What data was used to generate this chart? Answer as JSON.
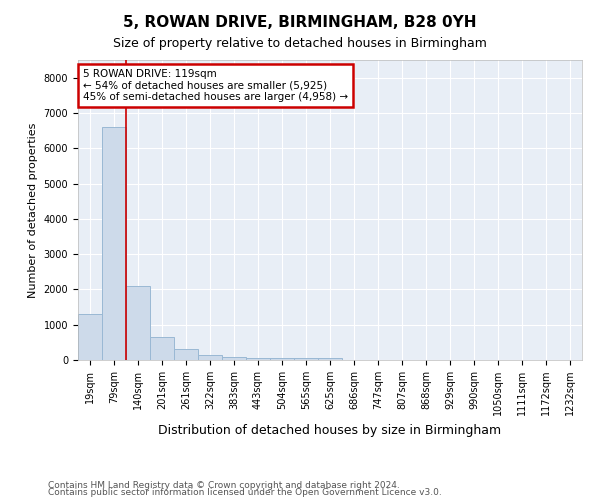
{
  "title": "5, ROWAN DRIVE, BIRMINGHAM, B28 0YH",
  "subtitle": "Size of property relative to detached houses in Birmingham",
  "xlabel": "Distribution of detached houses by size in Birmingham",
  "ylabel": "Number of detached properties",
  "footnote1": "Contains HM Land Registry data © Crown copyright and database right 2024.",
  "footnote2": "Contains public sector information licensed under the Open Government Licence v3.0.",
  "bar_labels": [
    "19sqm",
    "79sqm",
    "140sqm",
    "201sqm",
    "261sqm",
    "322sqm",
    "383sqm",
    "443sqm",
    "504sqm",
    "565sqm",
    "625sqm",
    "686sqm",
    "747sqm",
    "807sqm",
    "868sqm",
    "929sqm",
    "990sqm",
    "1050sqm",
    "1111sqm",
    "1172sqm",
    "1232sqm"
  ],
  "bar_values": [
    1300,
    6600,
    2100,
    650,
    300,
    130,
    80,
    50,
    50,
    50,
    50,
    0,
    0,
    0,
    0,
    0,
    0,
    0,
    0,
    0,
    0
  ],
  "bar_color": "#cddaea",
  "bar_edge_color": "#9ab8d4",
  "vline_x_index": 2,
  "annotation_title": "5 ROWAN DRIVE: 119sqm",
  "annotation_line1": "← 54% of detached houses are smaller (5,925)",
  "annotation_line2": "45% of semi-detached houses are larger (4,958) →",
  "annotation_box_color": "#ffffff",
  "annotation_box_edge": "#cc0000",
  "vline_color": "#cc0000",
  "ylim": [
    0,
    8500
  ],
  "yticks": [
    0,
    1000,
    2000,
    3000,
    4000,
    5000,
    6000,
    7000,
    8000
  ],
  "background_color": "#ffffff",
  "plot_bg_color": "#e8eef6",
  "grid_color": "#ffffff",
  "title_fontsize": 11,
  "subtitle_fontsize": 9,
  "ylabel_fontsize": 8,
  "xlabel_fontsize": 9,
  "tick_fontsize": 7,
  "footnote_fontsize": 6.5
}
